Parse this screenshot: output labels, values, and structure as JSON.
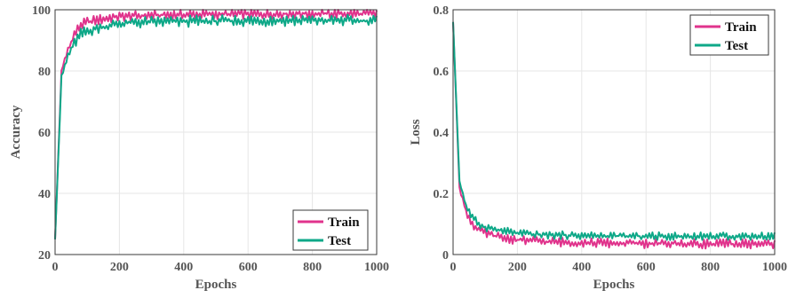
{
  "chart_data": [
    {
      "type": "line",
      "xlabel": "Epochs",
      "ylabel": "Accuracy",
      "xlim": [
        0,
        1000
      ],
      "ylim": [
        20,
        100
      ],
      "xticks": [
        "0",
        "200",
        "400",
        "600",
        "800",
        "1000"
      ],
      "yticks": [
        "20",
        "40",
        "60",
        "80",
        "100"
      ],
      "grid": true,
      "legend_position": "bottom-right",
      "colors": {
        "Train": "#e0338c",
        "Test": "#0ea888"
      },
      "x": [
        0,
        20,
        40,
        60,
        80,
        100,
        150,
        200,
        250,
        300,
        350,
        400,
        450,
        500,
        550,
        600,
        650,
        700,
        750,
        800,
        850,
        900,
        950,
        1000
      ],
      "series": [
        {
          "name": "Train",
          "values": [
            25,
            80,
            87,
            92,
            95,
            96,
            97,
            97.8,
            98,
            98.2,
            98.3,
            98.4,
            98.5,
            98.5,
            98.6,
            98.6,
            98.6,
            98.7,
            98.7,
            98.7,
            98.7,
            98.7,
            98.7,
            98.7
          ],
          "oscillation": 1.4
        },
        {
          "name": "Test",
          "values": [
            25,
            78,
            85,
            89,
            92,
            93,
            94.5,
            95.5,
            95.8,
            96,
            96.1,
            96.2,
            96.3,
            96.3,
            96.4,
            96.4,
            96.4,
            96.5,
            96.5,
            96.5,
            96.5,
            96.5,
            96.5,
            96.5
          ],
          "oscillation": 1.6
        }
      ]
    },
    {
      "type": "line",
      "xlabel": "Epochs",
      "ylabel": "Loss",
      "xlim": [
        0,
        1000
      ],
      "ylim": [
        0,
        0.8
      ],
      "xticks": [
        "0",
        "200",
        "400",
        "600",
        "800",
        "1000"
      ],
      "yticks": [
        "0",
        "0.2",
        "0.4",
        "0.6",
        "0.8"
      ],
      "grid": true,
      "legend_position": "top-right",
      "colors": {
        "Train": "#e0338c",
        "Test": "#0ea888"
      },
      "x": [
        0,
        20,
        40,
        60,
        80,
        100,
        150,
        200,
        250,
        300,
        350,
        400,
        450,
        500,
        550,
        600,
        650,
        700,
        750,
        800,
        850,
        900,
        950,
        1000
      ],
      "series": [
        {
          "name": "Train",
          "values": [
            0.76,
            0.22,
            0.14,
            0.1,
            0.08,
            0.07,
            0.055,
            0.048,
            0.045,
            0.042,
            0.04,
            0.039,
            0.038,
            0.037,
            0.037,
            0.036,
            0.036,
            0.036,
            0.035,
            0.035,
            0.035,
            0.035,
            0.035,
            0.035
          ],
          "oscillation": 0.013
        },
        {
          "name": "Test",
          "values": [
            0.76,
            0.24,
            0.16,
            0.12,
            0.1,
            0.09,
            0.078,
            0.07,
            0.066,
            0.064,
            0.063,
            0.062,
            0.061,
            0.061,
            0.06,
            0.06,
            0.06,
            0.06,
            0.06,
            0.06,
            0.06,
            0.06,
            0.06,
            0.06
          ],
          "oscillation": 0.011
        }
      ]
    }
  ]
}
